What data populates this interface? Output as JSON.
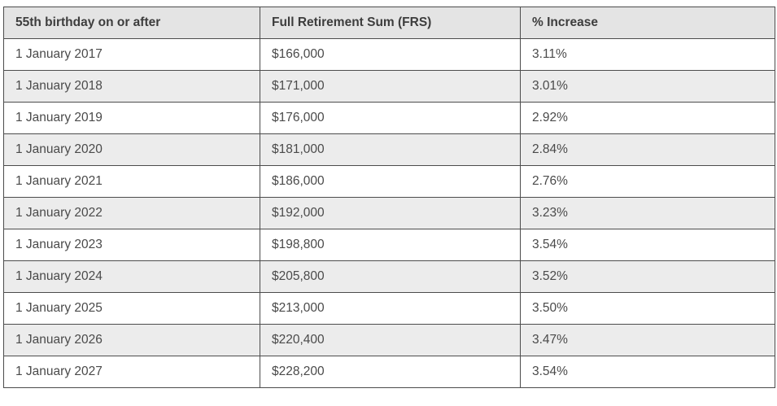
{
  "colors": {
    "border": "#4c4c4c",
    "header_background": "#e4e4e4",
    "stripe_background": "#ececec",
    "row_background": "#ffffff",
    "text": "#4a4a4a"
  },
  "table": {
    "headers": [
      "55th birthday on or after",
      "Full Retirement Sum (FRS)",
      "% Increase"
    ],
    "rows": [
      {
        "date": "1 January 2017",
        "frs": "$166,000",
        "increase": "3.11%"
      },
      {
        "date": "1 January 2018",
        "frs": "$171,000",
        "increase": "3.01%"
      },
      {
        "date": "1 January 2019",
        "frs": "$176,000",
        "increase": "2.92%"
      },
      {
        "date": "1 January 2020",
        "frs": "$181,000",
        "increase": "2.84%"
      },
      {
        "date": "1 January 2021",
        "frs": "$186,000",
        "increase": "2.76%"
      },
      {
        "date": "1 January 2022",
        "frs": "$192,000",
        "increase": "3.23%"
      },
      {
        "date": "1 January 2023",
        "frs": "$198,800",
        "increase": "3.54%"
      },
      {
        "date": "1 January 2024",
        "frs": "$205,800",
        "increase": "3.52%"
      },
      {
        "date": "1 January 2025",
        "frs": "$213,000",
        "increase": "3.50%"
      },
      {
        "date": "1 January 2026",
        "frs": "$220,400",
        "increase": "3.47%"
      },
      {
        "date": "1 January 2027",
        "frs": "$228,200",
        "increase": "3.54%"
      }
    ]
  },
  "chart_data": {
    "type": "table",
    "title": "",
    "columns": [
      "55th birthday on or after",
      "Full Retirement Sum (FRS)",
      "% Increase"
    ],
    "categories": [
      "1 January 2017",
      "1 January 2018",
      "1 January 2019",
      "1 January 2020",
      "1 January 2021",
      "1 January 2022",
      "1 January 2023",
      "1 January 2024",
      "1 January 2025",
      "1 January 2026",
      "1 January 2027"
    ],
    "series": [
      {
        "name": "Full Retirement Sum (FRS)",
        "values": [
          166000,
          171000,
          176000,
          181000,
          186000,
          192000,
          198800,
          205800,
          213000,
          220400,
          228200
        ]
      },
      {
        "name": "% Increase",
        "values": [
          3.11,
          3.01,
          2.92,
          2.84,
          2.76,
          3.23,
          3.54,
          3.52,
          3.5,
          3.47,
          3.54
        ]
      }
    ]
  }
}
